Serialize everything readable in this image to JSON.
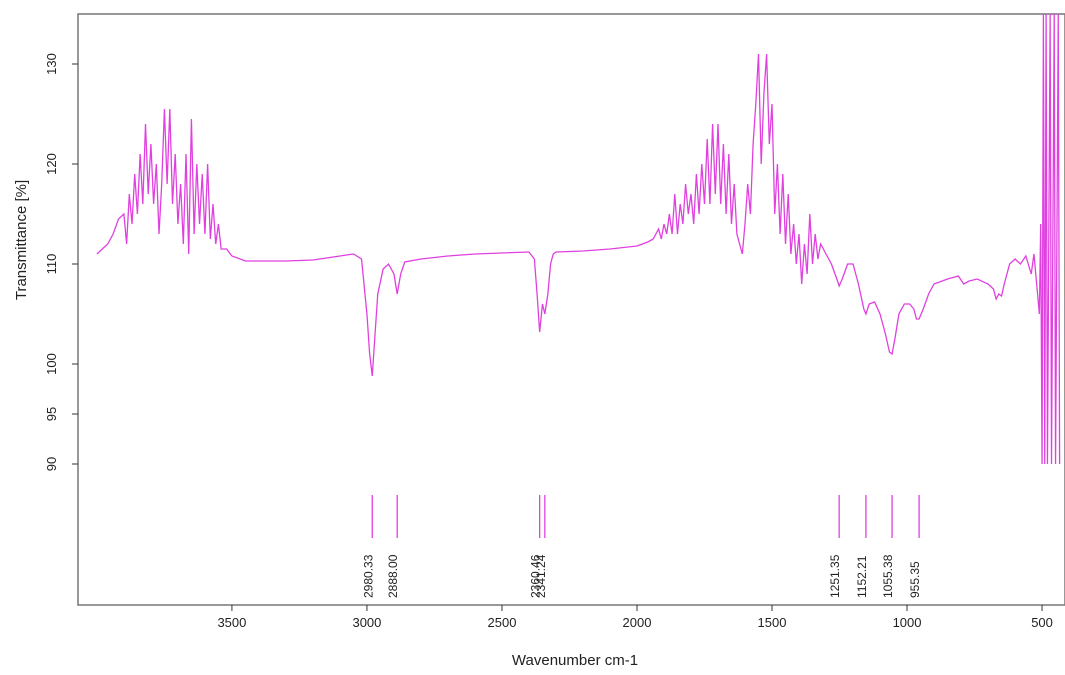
{
  "chart_data": {
    "type": "line",
    "xlabel": "Wavenumber cm-1",
    "ylabel": "Transmittance [%]",
    "xlim": [
      4070,
      415
    ],
    "ylim": [
      75.9,
      135
    ],
    "xticks": [
      3500,
      3000,
      2500,
      2000,
      1500,
      1000,
      500
    ],
    "yticks": [
      90,
      95,
      100,
      110,
      120,
      130
    ],
    "color": "#e040e0",
    "x": [
      4000,
      3980,
      3960,
      3940,
      3920,
      3900,
      3890,
      3880,
      3870,
      3860,
      3850,
      3840,
      3830,
      3820,
      3810,
      3800,
      3790,
      3780,
      3770,
      3760,
      3750,
      3740,
      3730,
      3720,
      3710,
      3700,
      3690,
      3680,
      3670,
      3660,
      3650,
      3640,
      3630,
      3620,
      3610,
      3600,
      3590,
      3580,
      3570,
      3560,
      3550,
      3540,
      3520,
      3500,
      3450,
      3400,
      3300,
      3200,
      3100,
      3050,
      3020,
      3000,
      2990,
      2980.33,
      2970,
      2960,
      2940,
      2920,
      2900,
      2888,
      2875,
      2860,
      2800,
      2700,
      2600,
      2500,
      2400,
      2380,
      2370,
      2360.46,
      2350,
      2341.24,
      2330,
      2320,
      2310,
      2300,
      2200,
      2100,
      2000,
      1960,
      1940,
      1920,
      1910,
      1900,
      1890,
      1880,
      1870,
      1860,
      1850,
      1840,
      1830,
      1820,
      1810,
      1800,
      1790,
      1780,
      1770,
      1760,
      1750,
      1740,
      1730,
      1720,
      1710,
      1700,
      1690,
      1680,
      1670,
      1660,
      1650,
      1640,
      1630,
      1620,
      1610,
      1600,
      1590,
      1580,
      1570,
      1560,
      1550,
      1540,
      1530,
      1520,
      1510,
      1500,
      1490,
      1480,
      1470,
      1460,
      1450,
      1440,
      1430,
      1420,
      1410,
      1400,
      1390,
      1380,
      1370,
      1360,
      1350,
      1340,
      1330,
      1320,
      1300,
      1280,
      1260,
      1251.35,
      1240,
      1220,
      1200,
      1180,
      1160,
      1152.21,
      1140,
      1120,
      1100,
      1080,
      1065,
      1055.38,
      1045,
      1030,
      1010,
      990,
      975,
      965,
      955.35,
      940,
      920,
      900,
      850,
      810,
      790,
      770,
      740,
      700,
      680,
      670,
      660,
      650,
      640,
      620,
      600,
      580,
      560,
      540,
      530,
      520,
      510,
      505,
      500,
      495,
      490,
      485,
      480,
      470,
      465,
      455,
      450,
      440,
      435
    ],
    "values": [
      111,
      111.5,
      112,
      113,
      114.5,
      115,
      112,
      117,
      114,
      119,
      115,
      121,
      116,
      124,
      117,
      122,
      116,
      120,
      113,
      118,
      125.5,
      118,
      125.5,
      116,
      121,
      114,
      118,
      112,
      121,
      111,
      124.5,
      113,
      120,
      114,
      119,
      113,
      120,
      112.5,
      116,
      112,
      114,
      111.5,
      111.5,
      110.8,
      110.3,
      110.3,
      110.3,
      110.4,
      110.8,
      111,
      110.5,
      105,
      101,
      98.8,
      103,
      107,
      109.5,
      110,
      109,
      107,
      109,
      110.2,
      110.5,
      110.8,
      111,
      111.1,
      111.2,
      110.5,
      107,
      103.2,
      106,
      105,
      107,
      110,
      111,
      111.2,
      111.3,
      111.5,
      111.8,
      112.2,
      112.5,
      113.5,
      112.5,
      114,
      113,
      115,
      113,
      117,
      113,
      116,
      114,
      118,
      115,
      117,
      114,
      119,
      115,
      120,
      116,
      122.5,
      116,
      124,
      117,
      124,
      116,
      122,
      115,
      121,
      114,
      118,
      113,
      112,
      111,
      114,
      118,
      115,
      122,
      126,
      131,
      120,
      127,
      131,
      122,
      126,
      115,
      120,
      113,
      119,
      112,
      117,
      111,
      114,
      110,
      113,
      108,
      112,
      109,
      115,
      110,
      113,
      110.5,
      112,
      111,
      110,
      108.5,
      107.8,
      108.5,
      110,
      110,
      108,
      105.5,
      105,
      106,
      106.2,
      105,
      103,
      101.2,
      101,
      102.5,
      105,
      106,
      106,
      105.5,
      104.5,
      104.5,
      105.5,
      107,
      108,
      108.5,
      108.8,
      108,
      108.3,
      108.5,
      108,
      107.5,
      106.5,
      107,
      106.8,
      108,
      110,
      110.5,
      110,
      110.8,
      109,
      111,
      108,
      105,
      114,
      90,
      135,
      90,
      135,
      90,
      135,
      90,
      135,
      90,
      135,
      90
    ],
    "peaks": [
      {
        "value": 2980.33,
        "label": "2980.33"
      },
      {
        "value": 2888.0,
        "label": "2888.00"
      },
      {
        "value": 2360.46,
        "label": "2360.46"
      },
      {
        "value": 2341.24,
        "label": "2341.24"
      },
      {
        "value": 1251.35,
        "label": "1251.35"
      },
      {
        "value": 1152.21,
        "label": "1152.21"
      },
      {
        "value": 1055.38,
        "label": "1055.38"
      },
      {
        "value": 955.35,
        "label": "955.35"
      }
    ]
  }
}
